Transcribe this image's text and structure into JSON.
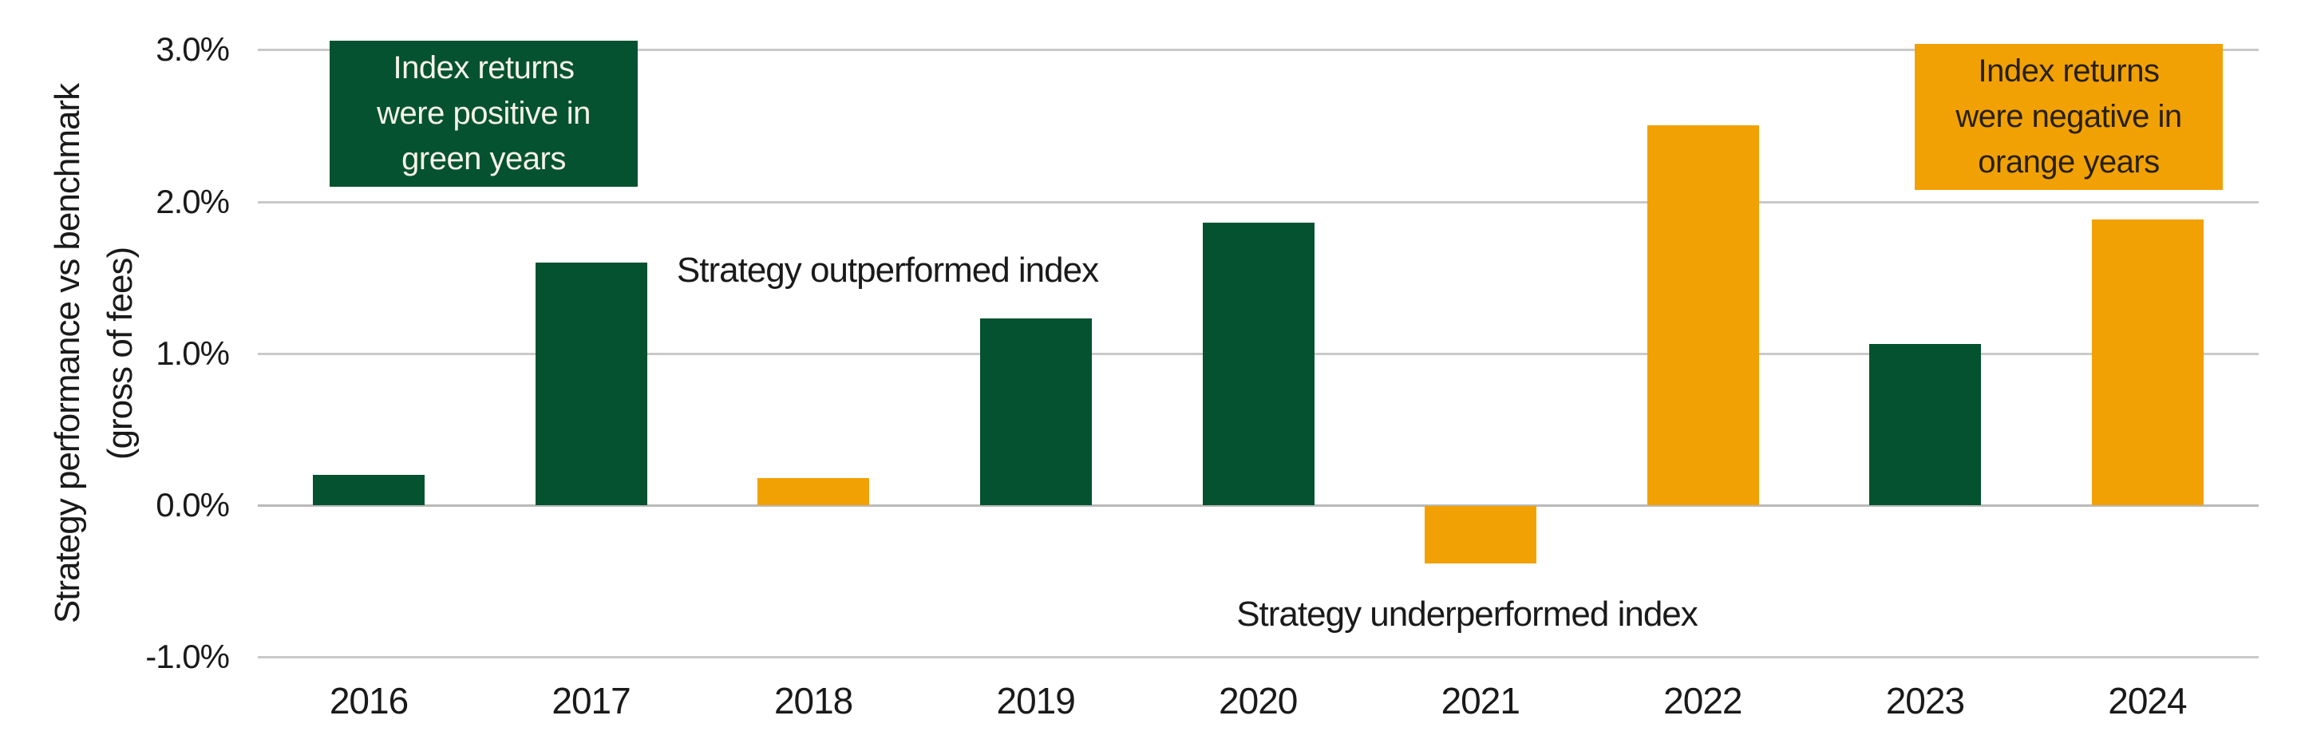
{
  "chart_data": {
    "type": "bar",
    "title": "",
    "xlabel": "",
    "ylabel": "Strategy performance vs benchmark (gross of fees)",
    "ylabel_line1": "Strategy performance vs benchmark",
    "ylabel_line2": "(gross of fees)",
    "categories": [
      "2016",
      "2017",
      "2018",
      "2019",
      "2020",
      "2021",
      "2022",
      "2023",
      "2024"
    ],
    "series": [
      {
        "name": "Strategy performance vs benchmark (gross of fees)",
        "values": [
          0.2,
          1.6,
          0.18,
          1.23,
          1.86,
          -0.38,
          2.5,
          1.06,
          1.88
        ]
      }
    ],
    "value_unit": "%",
    "point_colors": [
      "green",
      "green",
      "orange",
      "green",
      "green",
      "orange",
      "orange",
      "green",
      "orange"
    ],
    "color_legend": {
      "green": "index returns were positive",
      "orange": "index returns were negative"
    },
    "y_ticks": [
      {
        "label": "3.0%",
        "value": 3
      },
      {
        "label": "2.0%",
        "value": 2
      },
      {
        "label": "1.0%",
        "value": 1
      },
      {
        "label": "0.0%",
        "value": 0
      },
      {
        "label": "-1.0%",
        "value": -1
      }
    ],
    "ylim": [
      -1.0,
      3.0
    ],
    "grid": true,
    "legend_position": "none",
    "colors": {
      "green": "#045230",
      "orange": "#F2A104",
      "grid": "#C9C9C9",
      "zero": "#B9B9B9",
      "text": "#1A1A1A",
      "green_box_text": "#F7F3E7",
      "orange_box_text": "#26200F",
      "bg": "#FFFFFF"
    },
    "annotations": {
      "positive_box": {
        "text": "Index returns\nwere positive in\ngreen years"
      },
      "negative_box": {
        "text": "Index returns\nwere negative in\norange years"
      },
      "outperformed_label": "Strategy outperformed index",
      "underperformed_label": "Strategy underperformed index"
    }
  }
}
